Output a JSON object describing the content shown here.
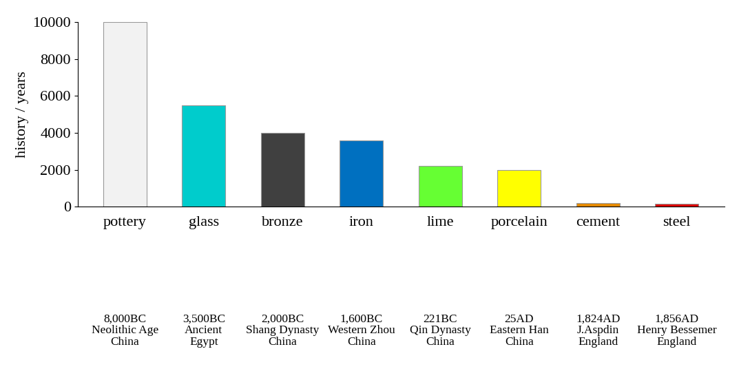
{
  "chart_data": {
    "type": "bar",
    "y_label": "history / years",
    "categories": [
      "pottery",
      "glass",
      "bronze",
      "iron",
      "lime",
      "porcelain",
      "cement",
      "steel"
    ],
    "values": [
      10000,
      5500,
      4000,
      3600,
      2200,
      2000,
      190,
      160
    ],
    "colors": [
      "#f2f2f2",
      "#00cccc",
      "#404040",
      "#0070c0",
      "#66ff33",
      "#ffff00",
      "#e68a00",
      "#e00000"
    ],
    "annotations": [
      [
        "8,000BC",
        "Neolithic Age",
        "China"
      ],
      [
        "3,500BC",
        "Ancient",
        "Egypt"
      ],
      [
        "2,000BC",
        "Shang Dynasty",
        "China"
      ],
      [
        "1,600BC",
        "Western Zhou",
        "China"
      ],
      [
        "221BC",
        "Qin Dynasty",
        "China"
      ],
      [
        "25AD",
        "Eastern Han",
        "China"
      ],
      [
        "1,824AD",
        "J.Aspdin",
        "England"
      ],
      [
        "1,856AD",
        "Henry Bessemer",
        "England"
      ]
    ],
    "ylim": [
      0,
      10000
    ],
    "yticks": [
      0,
      2000,
      4000,
      6000,
      8000,
      10000
    ],
    "grid": false
  }
}
